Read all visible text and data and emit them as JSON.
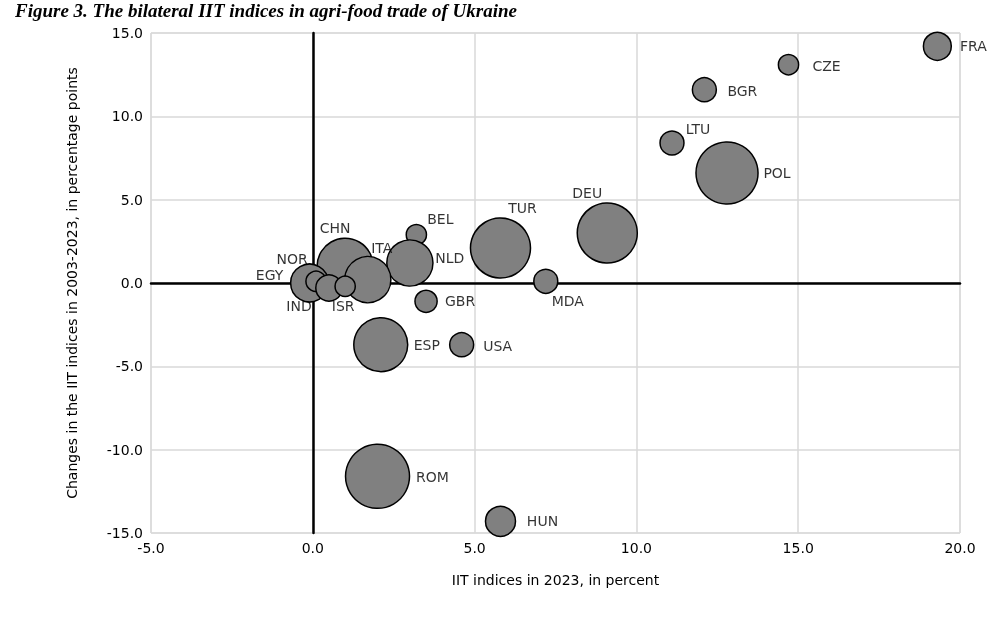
{
  "chart_data": {
    "type": "bubble",
    "title": "Figure 3. The bilateral IIT indices in agri-food trade of Ukraine",
    "xlabel": "IIT indices in 2023, in percent",
    "ylabel": "Changes in the IIT indices in 2003-2023, in percentage points",
    "x": [
      19.3,
      14.7,
      12.1,
      11.1,
      12.8,
      9.1,
      5.8,
      3.2,
      3.0,
      1.0,
      1.7,
      -0.1,
      0.1,
      0.5,
      1.0,
      3.5,
      7.2,
      2.1,
      4.6,
      2.0,
      5.8
    ],
    "values": [
      14.2,
      13.1,
      11.6,
      8.4,
      6.6,
      3.0,
      2.1,
      2.9,
      1.2,
      1.0,
      0.2,
      0.0,
      0.1,
      -0.3,
      -0.2,
      -1.1,
      0.1,
      -3.7,
      -3.7,
      -11.6,
      -14.3
    ],
    "sizes": [
      0.19,
      0.1,
      0.14,
      0.14,
      0.94,
      0.88,
      0.88,
      0.1,
      0.52,
      0.77,
      0.52,
      0.35,
      0.1,
      0.17,
      0.1,
      0.12,
      0.14,
      0.71,
      0.14,
      1,
      0.22
    ],
    "color": "#808080",
    "annotations": [
      {
        "text": "FRA",
        "x": 19.3,
        "y": 14.2
      },
      {
        "text": "CZE",
        "x": 14.7,
        "y": 13.1
      },
      {
        "text": "BGR",
        "x": 12.1,
        "y": 11.6
      },
      {
        "text": "LTU",
        "x": 11.1,
        "y": 8.4
      },
      {
        "text": "POL",
        "x": 12.8,
        "y": 6.6
      },
      {
        "text": "DEU",
        "x": 9.1,
        "y": 3.0
      },
      {
        "text": "TUR",
        "x": 5.8,
        "y": 2.1
      },
      {
        "text": "BEL",
        "x": 3.2,
        "y": 2.9
      },
      {
        "text": "NLD",
        "x": 3.0,
        "y": 1.2
      },
      {
        "text": "CHN",
        "x": 1.0,
        "y": 1.0
      },
      {
        "text": "ITA",
        "x": 1.7,
        "y": 0.2
      },
      {
        "text": "EGY",
        "x": -0.1,
        "y": 0.0
      },
      {
        "text": "NOR",
        "x": 0.1,
        "y": 0.1
      },
      {
        "text": "IND",
        "x": 0.5,
        "y": -0.3
      },
      {
        "text": "ISR",
        "x": 1.0,
        "y": -0.2
      },
      {
        "text": "GBR",
        "x": 3.5,
        "y": -1.1
      },
      {
        "text": "MDA",
        "x": 7.2,
        "y": 0.1
      },
      {
        "text": "ESP",
        "x": 2.1,
        "y": -3.7
      },
      {
        "text": "USA",
        "x": 4.6,
        "y": -3.7
      },
      {
        "text": "ROM",
        "x": 2.0,
        "y": -11.6
      },
      {
        "text": "HUN",
        "x": 5.8,
        "y": -14.3
      }
    ],
    "xlim": [
      -5,
      20
    ],
    "xticks": [
      {
        "value": -5,
        "label": "-5.0"
      },
      {
        "value": 0,
        "label": "0.0"
      },
      {
        "value": 5,
        "label": "5.0"
      },
      {
        "value": 10,
        "label": "10.0"
      },
      {
        "value": 15,
        "label": "15.0"
      },
      {
        "value": 20,
        "label": "20.0"
      }
    ],
    "ylim": [
      -15,
      15
    ],
    "yticks": [
      {
        "value": -15,
        "label": "-15.0"
      },
      {
        "value": -10,
        "label": "-10.0"
      },
      {
        "value": -5,
        "label": "-5.0"
      },
      {
        "value": 0,
        "label": "0.0"
      },
      {
        "value": 5,
        "label": "5.0"
      },
      {
        "value": 10,
        "label": "10.0"
      },
      {
        "value": 15,
        "label": "15.0"
      }
    ],
    "grid": true
  }
}
